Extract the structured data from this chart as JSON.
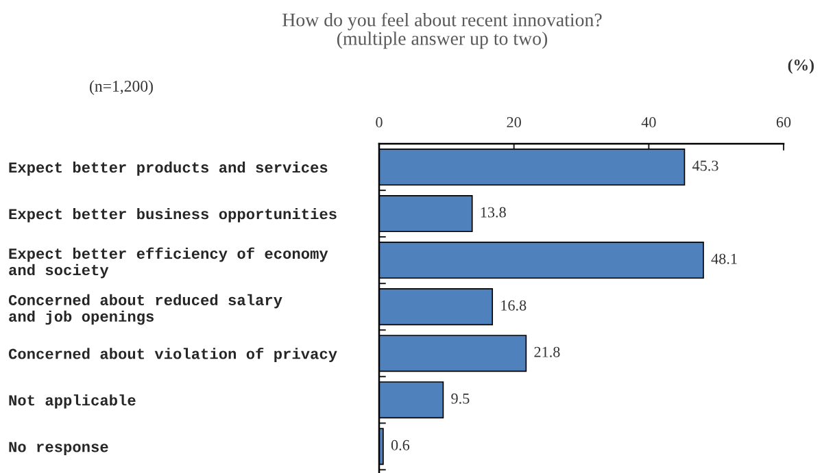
{
  "chart_data": {
    "type": "bar",
    "orientation": "horizontal",
    "title": "How do you feel about recent innovation?\n(multiple answer up to two)",
    "categories": [
      "Expect better products and services",
      "Expect better business opportunities",
      "Expect better efficiency of economy\nand society",
      "Concerned about reduced salary\nand job openings",
      "Concerned about violation of privacy",
      "Not applicable",
      "No response"
    ],
    "values": [
      45.3,
      13.8,
      48.1,
      16.8,
      21.8,
      9.5,
      0.6
    ],
    "color": "#4f81bd",
    "xlim": [
      0,
      60
    ],
    "xticks": [
      0,
      20,
      40,
      60
    ],
    "data_labels": true,
    "grid": false,
    "legend": false,
    "annotations": [
      "(n=1,200)",
      "(%)"
    ]
  }
}
